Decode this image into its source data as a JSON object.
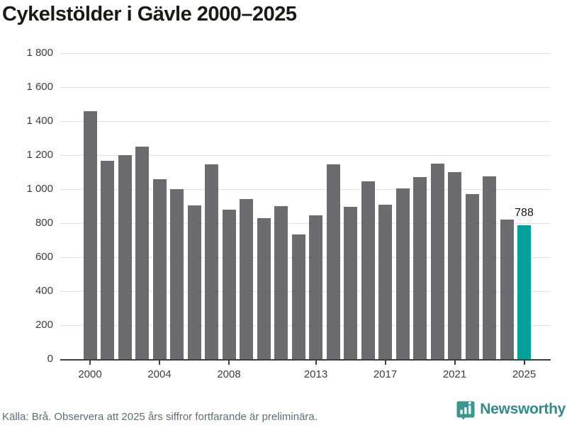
{
  "header": {
    "title": "Cykelstölder i Gävle 2000–2025"
  },
  "chart_data": {
    "type": "bar",
    "title": "Cykelstölder i Gävle 2000–2025",
    "categories": [
      2000,
      2001,
      2002,
      2003,
      2004,
      2005,
      2006,
      2007,
      2008,
      2009,
      2010,
      2011,
      2012,
      2013,
      2014,
      2015,
      2016,
      2017,
      2018,
      2019,
      2020,
      2021,
      2022,
      2023,
      2024,
      2025
    ],
    "values": [
      1460,
      1165,
      1200,
      1250,
      1060,
      1000,
      905,
      1145,
      880,
      940,
      830,
      900,
      735,
      845,
      1145,
      895,
      1045,
      910,
      1005,
      1070,
      1150,
      1100,
      970,
      1075,
      820,
      788
    ],
    "highlight_category": 2025,
    "highlight_value_label": "788",
    "xlabel": "",
    "ylabel": "",
    "ylim": [
      0,
      1800
    ],
    "grid": "horizontal",
    "legend": "none",
    "ytick_values": [
      0,
      200,
      400,
      600,
      800,
      1000,
      1200,
      1400,
      1600,
      1800
    ],
    "ytick_labels": [
      "0",
      "200",
      "400",
      "600",
      "800",
      "1 000",
      "1 200",
      "1 400",
      "1 600",
      "1 800"
    ],
    "xtick_years": [
      2000,
      2004,
      2008,
      2013,
      2017,
      2021,
      2025
    ],
    "xtick_labels": [
      "2000",
      "2004",
      "2008",
      "2013",
      "2017",
      "2021",
      "2025"
    ],
    "colors": {
      "bar": "#6c6b70",
      "highlight_bar": "#00a29a",
      "gridline": "#e2e2e2",
      "axis": "#3f3f3f",
      "tick_text": "#3d3d3d",
      "value_label_text": "#141414"
    }
  },
  "footer": {
    "source_text": "Källa: Brå. Observera att 2025 års siffror fortfarande är preliminära.",
    "brand_name": "Newsworthy",
    "brand_color": "#2f8d88",
    "logo_icon": "bar-chart-speech-bubble-icon"
  }
}
